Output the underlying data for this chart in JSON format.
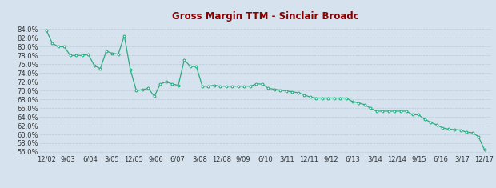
{
  "title": "Gross Margin TTM - Sinclair Broadc",
  "title_color": "#8B0000",
  "background_color": "#d6e3ef",
  "plot_bg_color": "#d6e3ef",
  "line_color": "#2eaa80",
  "marker_color": "#2eaa80",
  "ylim": [
    55.5,
    85.5
  ],
  "yticks": [
    56.0,
    58.0,
    60.0,
    62.0,
    64.0,
    66.0,
    68.0,
    70.0,
    72.0,
    74.0,
    76.0,
    78.0,
    80.0,
    82.0,
    84.0
  ],
  "x_labels": [
    "12/02",
    "9/03",
    "6/04",
    "3/05",
    "12/05",
    "9/06",
    "6/07",
    "3/08",
    "12/08",
    "9/09",
    "6/10",
    "3/11",
    "12/11",
    "9/12",
    "6/13",
    "3/14",
    "12/14",
    "9/15",
    "6/16",
    "3/17",
    "12/17"
  ],
  "values": [
    83.8,
    80.8,
    80.0,
    80.0,
    78.0,
    78.0,
    78.0,
    78.3,
    75.7,
    75.0,
    79.0,
    78.5,
    78.3,
    82.5,
    74.8,
    70.0,
    70.2,
    70.5,
    68.7,
    71.5,
    72.0,
    71.5,
    71.2,
    77.0,
    75.5,
    75.5,
    71.0,
    71.0,
    71.2,
    71.0,
    71.0,
    71.0,
    71.0,
    71.0,
    71.0,
    71.5,
    71.5,
    70.5,
    70.3,
    70.1,
    69.9,
    69.7,
    69.5,
    69.0,
    68.5,
    68.3,
    68.3,
    68.3,
    68.3,
    68.3,
    68.3,
    67.5,
    67.2,
    66.8,
    66.0,
    65.3,
    65.3,
    65.3,
    65.3,
    65.3,
    65.3,
    64.5,
    64.5,
    63.5,
    62.8,
    62.2,
    61.5,
    61.2,
    61.1,
    61.0,
    60.5,
    60.4,
    59.5,
    56.5
  ],
  "grid_color": "#b8c9d8",
  "title_fontsize": 8.5,
  "tick_fontsize": 6.0
}
